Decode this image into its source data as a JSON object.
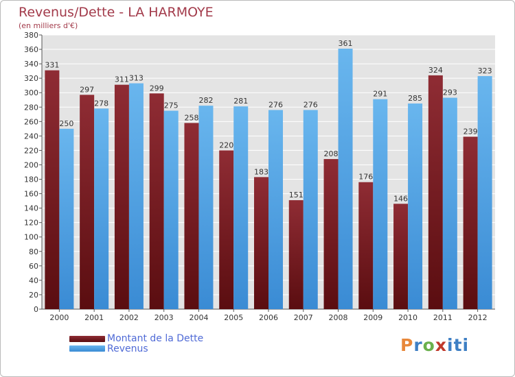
{
  "header": {
    "title": "Revenus/Dette - LA HARMOYE",
    "subtitle": "(en milliers d'€)"
  },
  "legend": {
    "dette_label": "Montant de la Dette",
    "revenus_label": "Revenus"
  },
  "brand": {
    "letters": [
      "P",
      "r",
      "o",
      "x",
      "i",
      "t",
      "i"
    ]
  },
  "colors": {
    "dette_top": "#8f2c34",
    "dette_bottom": "#5a0d10",
    "revenus_top": "#69b6ee",
    "revenus_bottom": "#3a8bd4",
    "grid": "#ffffff",
    "plot_bg": "#e4e4e4"
  },
  "chart_data": {
    "type": "bar",
    "title": "Revenus/Dette - LA HARMOYE",
    "ylabel": "(en milliers d'€)",
    "xlabel": "",
    "ylim": [
      0,
      380
    ],
    "ytick_step": 20,
    "grid": true,
    "legend_position": "bottom-left",
    "categories": [
      "2000",
      "2001",
      "2002",
      "2003",
      "2004",
      "2005",
      "2006",
      "2007",
      "2008",
      "2009",
      "2010",
      "2011",
      "2012"
    ],
    "series": [
      {
        "name": "Montant de la Dette",
        "values": [
          331,
          297,
          311,
          299,
          258,
          220,
          183,
          151,
          208,
          176,
          146,
          324,
          239
        ]
      },
      {
        "name": "Revenus",
        "values": [
          250,
          278,
          313,
          275,
          282,
          281,
          276,
          276,
          361,
          291,
          285,
          293,
          323
        ]
      }
    ]
  }
}
